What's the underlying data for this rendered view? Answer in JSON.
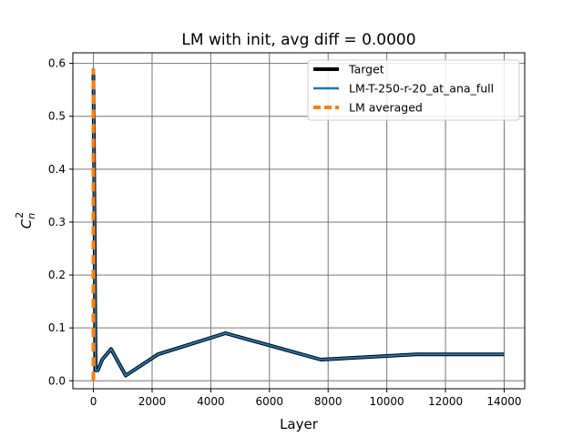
{
  "chart_data": {
    "type": "line",
    "title": "LM with init, avg diff = 0.0000",
    "xlabel": "Layer",
    "ylabel": "C_n^2",
    "xlim": [
      -700,
      14700
    ],
    "ylim": [
      -0.015,
      0.62
    ],
    "xticks": [
      0,
      2000,
      4000,
      6000,
      8000,
      10000,
      12000,
      14000
    ],
    "xtick_labels": [
      "0",
      "2000",
      "4000",
      "6000",
      "8000",
      "10000",
      "12000",
      "14000"
    ],
    "yticks": [
      0.0,
      0.1,
      0.2,
      0.3,
      0.4,
      0.5,
      0.6
    ],
    "ytick_labels": [
      "0.0",
      "0.1",
      "0.2",
      "0.3",
      "0.4",
      "0.5",
      "0.6"
    ],
    "grid": true,
    "legend_position": "top-right",
    "series": [
      {
        "name": "Target",
        "color": "#000000",
        "style": "solid",
        "x": [
          0,
          75,
          150,
          300,
          600,
          1100,
          2200,
          4500,
          7750,
          11000,
          14000
        ],
        "y": [
          0.59,
          0.02,
          0.02,
          0.04,
          0.06,
          0.01,
          0.05,
          0.09,
          0.04,
          0.05,
          0.05
        ]
      },
      {
        "name": "LM-T-250-r-20_at_ana_full",
        "color": "#1f77b4",
        "style": "solid",
        "x": [
          0,
          75,
          150,
          300,
          600,
          1100,
          2200,
          4500,
          7750,
          11000,
          14000
        ],
        "y": [
          0.59,
          0.02,
          0.02,
          0.04,
          0.06,
          0.01,
          0.05,
          0.09,
          0.04,
          0.05,
          0.05
        ]
      },
      {
        "name": "LM averaged",
        "color": "#ff7f0e",
        "style": "dashed",
        "x": [
          0,
          0
        ],
        "y": [
          0.0,
          0.59
        ]
      }
    ]
  }
}
